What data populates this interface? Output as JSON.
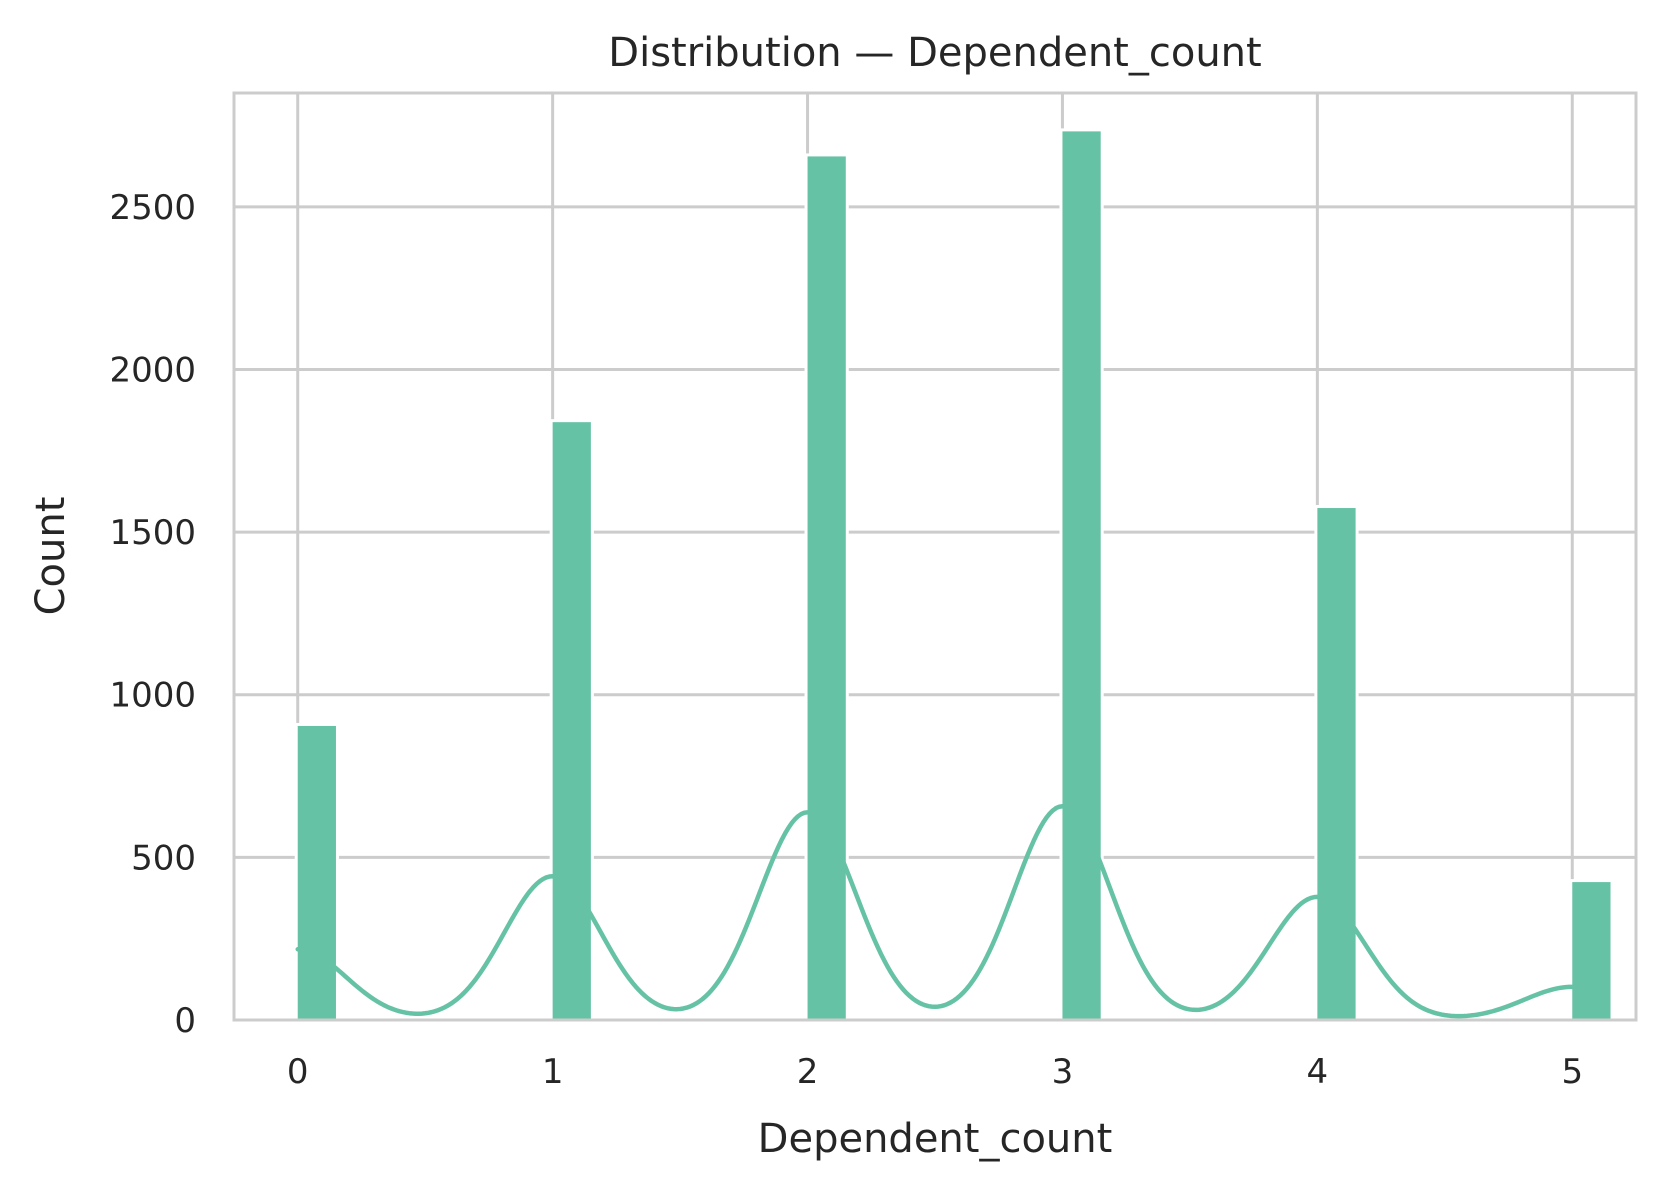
{
  "chart_data": {
    "type": "bar",
    "title": "Distribution — Dependent_count",
    "xlabel": "Dependent_count",
    "ylabel": "Count",
    "xlim": [
      -0.25,
      5.25
    ],
    "ylim": [
      0,
      2850
    ],
    "x_ticks": [
      0,
      1,
      2,
      3,
      4,
      5
    ],
    "y_ticks": [
      0,
      500,
      1000,
      1500,
      2000,
      2500
    ],
    "grid": true,
    "bin_width": 0.15,
    "bars": [
      {
        "x": 0,
        "value": 904
      },
      {
        "x": 1,
        "value": 1838
      },
      {
        "x": 2,
        "value": 2655
      },
      {
        "x": 3,
        "value": 2732
      },
      {
        "x": 4,
        "value": 1574
      },
      {
        "x": 5,
        "value": 424
      }
    ],
    "kde": {
      "bandwidth": 0.19,
      "scale": 1160,
      "x_range": [
        0,
        5
      ],
      "weights": [
        904,
        1838,
        2655,
        2732,
        1574,
        424
      ]
    },
    "colors": {
      "bar_fill": "#66c2a5",
      "bar_opacity": 0.5,
      "kde_line": "#66c2a5",
      "grid": "#cccccc",
      "axes_frame": "#cccccc",
      "background": "#ffffff",
      "text": "#262626"
    }
  }
}
